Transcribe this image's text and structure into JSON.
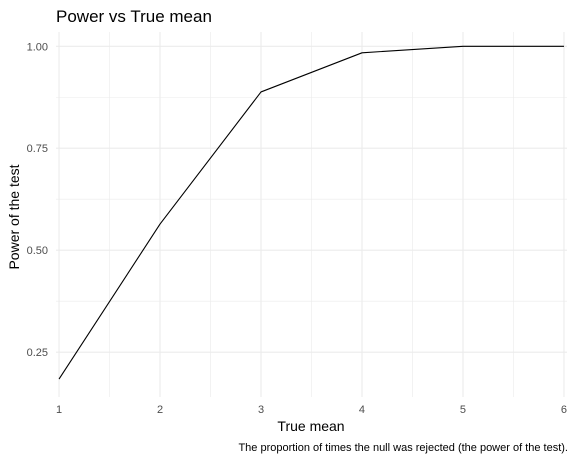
{
  "chart_data": {
    "type": "line",
    "title": "Power vs True mean",
    "xlabel": "True mean",
    "ylabel": "Power of the test",
    "caption": "The proportion of times the null was rejected (the power of the test).",
    "x": [
      1,
      2,
      3,
      4,
      5,
      6
    ],
    "y": [
      0.184,
      0.564,
      0.888,
      0.984,
      1.0,
      1.0
    ],
    "xlim": [
      0.97,
      6.03
    ],
    "ylim": [
      0.14,
      1.035
    ],
    "x_ticks": [
      1,
      2,
      3,
      4,
      5,
      6
    ],
    "x_tick_labels": [
      "1",
      "2",
      "3",
      "4",
      "5",
      "6"
    ],
    "y_ticks": [
      0.25,
      0.5,
      0.75,
      1.0
    ],
    "y_tick_labels": [
      "0.25",
      "0.50",
      "0.75",
      "1.00"
    ],
    "grid": true,
    "legend": "none",
    "line_color": "#000000",
    "grid_color": "#ebebeb"
  }
}
